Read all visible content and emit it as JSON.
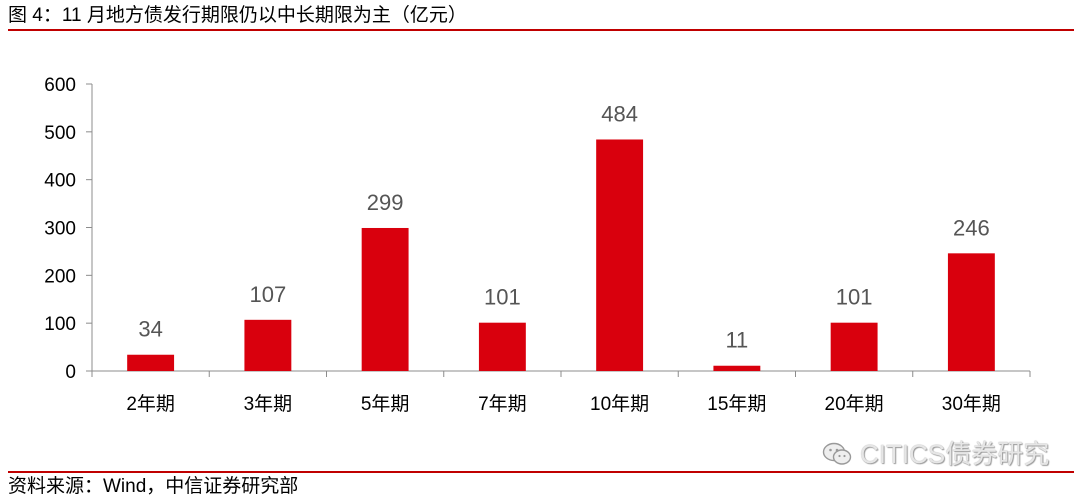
{
  "header": {
    "title": "图 4：11 月地方债发行期限仍以中长期限为主（亿元）"
  },
  "footer": {
    "source": "资料来源：Wind，中信证券研究部"
  },
  "watermark": {
    "icon": "wechat-icon",
    "text": "CITICS债券研究"
  },
  "colors": {
    "bar": "#d9000d",
    "rule": "#c00000",
    "label": "#555555"
  },
  "chart_data": {
    "type": "bar",
    "title": "",
    "xlabel": "",
    "ylabel": "",
    "categories": [
      "2年期",
      "3年期",
      "5年期",
      "7年期",
      "10年期",
      "15年期",
      "20年期",
      "30年期"
    ],
    "values": [
      34,
      107,
      299,
      101,
      484,
      11,
      101,
      246
    ],
    "data_labels": [
      "34",
      "107",
      "299",
      "101",
      "484",
      "11",
      "101",
      "246"
    ],
    "ylim": [
      0,
      600
    ],
    "yticks": [
      0,
      100,
      200,
      300,
      400,
      500,
      600
    ],
    "grid": false,
    "legend": "none"
  }
}
